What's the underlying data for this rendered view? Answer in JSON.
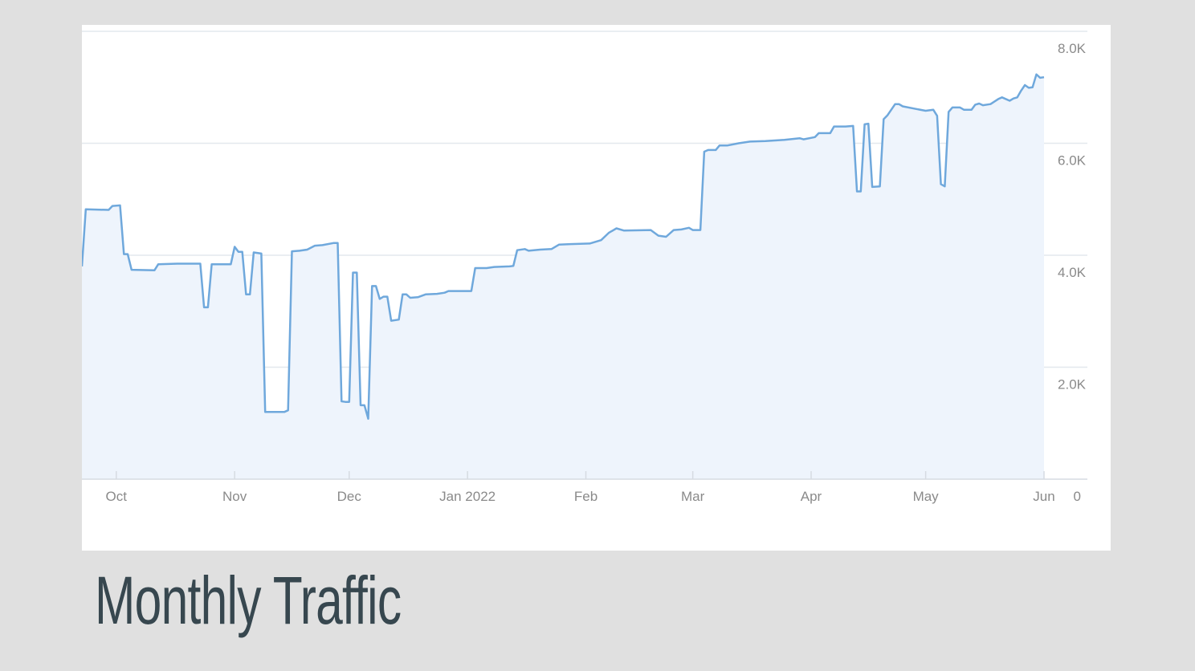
{
  "title": "Monthly Traffic",
  "colors": {
    "background": "#e0e0e0",
    "card": "#ffffff",
    "line": "#6fa8dc",
    "area": "#eef4fc",
    "grid": "#e3e8ee",
    "axis": "#d6dbe2",
    "tick_text": "#8a8a8a",
    "title": "#37474f"
  },
  "chart_data": {
    "type": "area",
    "title": "",
    "xlabel": "",
    "ylabel": "",
    "x_range": [
      "2021-09-22",
      "2022-06-01"
    ],
    "ylim": [
      0,
      8000
    ],
    "y_axis_position": "right",
    "grid": true,
    "legend": "none",
    "y_ticks": [
      {
        "value": 0,
        "label": "0"
      },
      {
        "value": 2000,
        "label": "2.0K"
      },
      {
        "value": 4000,
        "label": "4.0K"
      },
      {
        "value": 6000,
        "label": "6.0K"
      },
      {
        "value": 8000,
        "label": "8.0K"
      }
    ],
    "x_ticks": [
      {
        "date": "2021-10-01",
        "label": "Oct"
      },
      {
        "date": "2021-11-01",
        "label": "Nov"
      },
      {
        "date": "2021-12-01",
        "label": "Dec"
      },
      {
        "date": "2022-01-01",
        "label": "Jan 2022"
      },
      {
        "date": "2022-02-01",
        "label": "Feb"
      },
      {
        "date": "2022-03-01",
        "label": "Mar"
      },
      {
        "date": "2022-04-01",
        "label": "Apr"
      },
      {
        "date": "2022-05-01",
        "label": "May"
      },
      {
        "date": "2022-06-01",
        "label": "Jun"
      }
    ],
    "series": [
      {
        "points": [
          [
            "2021-09-22",
            3800
          ],
          [
            "2021-09-23",
            4820
          ],
          [
            "2021-09-29",
            4810
          ],
          [
            "2021-09-30",
            4880
          ],
          [
            "2021-10-02",
            4890
          ],
          [
            "2021-10-03",
            4020
          ],
          [
            "2021-10-04",
            4020
          ],
          [
            "2021-10-05",
            3740
          ],
          [
            "2021-10-11",
            3730
          ],
          [
            "2021-10-12",
            3840
          ],
          [
            "2021-10-17",
            3850
          ],
          [
            "2021-10-23",
            3850
          ],
          [
            "2021-10-24",
            3070
          ],
          [
            "2021-10-25",
            3070
          ],
          [
            "2021-10-26",
            3840
          ],
          [
            "2021-10-31",
            3840
          ],
          [
            "2021-11-01",
            4150
          ],
          [
            "2021-11-02",
            4060
          ],
          [
            "2021-11-03",
            4060
          ],
          [
            "2021-11-04",
            3300
          ],
          [
            "2021-11-05",
            3300
          ],
          [
            "2021-11-06",
            4050
          ],
          [
            "2021-11-08",
            4030
          ],
          [
            "2021-11-09",
            1200
          ],
          [
            "2021-11-14",
            1200
          ],
          [
            "2021-11-15",
            1230
          ],
          [
            "2021-11-16",
            4070
          ],
          [
            "2021-11-18",
            4080
          ],
          [
            "2021-11-20",
            4100
          ],
          [
            "2021-11-22",
            4170
          ],
          [
            "2021-11-24",
            4180
          ],
          [
            "2021-11-27",
            4220
          ],
          [
            "2021-11-28",
            4220
          ],
          [
            "2021-11-29",
            1390
          ],
          [
            "2021-11-30",
            1380
          ],
          [
            "2021-12-01",
            1380
          ],
          [
            "2021-12-02",
            3690
          ],
          [
            "2021-12-03",
            3690
          ],
          [
            "2021-12-04",
            1320
          ],
          [
            "2021-12-05",
            1320
          ],
          [
            "2021-12-06",
            1080
          ],
          [
            "2021-12-07",
            3450
          ],
          [
            "2021-12-08",
            3450
          ],
          [
            "2021-12-09",
            3220
          ],
          [
            "2021-12-10",
            3260
          ],
          [
            "2021-12-11",
            3260
          ],
          [
            "2021-12-12",
            2830
          ],
          [
            "2021-12-14",
            2850
          ],
          [
            "2021-12-15",
            3300
          ],
          [
            "2021-12-16",
            3300
          ],
          [
            "2021-12-17",
            3240
          ],
          [
            "2021-12-19",
            3250
          ],
          [
            "2021-12-21",
            3300
          ],
          [
            "2021-12-24",
            3310
          ],
          [
            "2021-12-26",
            3330
          ],
          [
            "2021-12-27",
            3360
          ],
          [
            "2022-01-02",
            3360
          ],
          [
            "2022-01-03",
            3770
          ],
          [
            "2022-01-06",
            3770
          ],
          [
            "2022-01-08",
            3790
          ],
          [
            "2022-01-12",
            3800
          ],
          [
            "2022-01-13",
            3810
          ],
          [
            "2022-01-14",
            4090
          ],
          [
            "2022-01-16",
            4110
          ],
          [
            "2022-01-17",
            4080
          ],
          [
            "2022-01-20",
            4100
          ],
          [
            "2022-01-23",
            4110
          ],
          [
            "2022-01-25",
            4190
          ],
          [
            "2022-01-28",
            4200
          ],
          [
            "2022-02-02",
            4210
          ],
          [
            "2022-02-05",
            4270
          ],
          [
            "2022-02-07",
            4400
          ],
          [
            "2022-02-09",
            4480
          ],
          [
            "2022-02-11",
            4440
          ],
          [
            "2022-02-18",
            4450
          ],
          [
            "2022-02-20",
            4350
          ],
          [
            "2022-02-22",
            4330
          ],
          [
            "2022-02-24",
            4450
          ],
          [
            "2022-02-26",
            4460
          ],
          [
            "2022-02-28",
            4490
          ],
          [
            "2022-03-01",
            4450
          ],
          [
            "2022-03-03",
            4450
          ],
          [
            "2022-03-04",
            5850
          ],
          [
            "2022-03-05",
            5880
          ],
          [
            "2022-03-07",
            5880
          ],
          [
            "2022-03-08",
            5960
          ],
          [
            "2022-03-10",
            5960
          ],
          [
            "2022-03-13",
            6000
          ],
          [
            "2022-03-16",
            6030
          ],
          [
            "2022-03-20",
            6040
          ],
          [
            "2022-03-25",
            6060
          ],
          [
            "2022-03-29",
            6090
          ],
          [
            "2022-03-30",
            6070
          ],
          [
            "2022-04-02",
            6110
          ],
          [
            "2022-04-03",
            6180
          ],
          [
            "2022-04-06",
            6180
          ],
          [
            "2022-04-07",
            6300
          ],
          [
            "2022-04-10",
            6300
          ],
          [
            "2022-04-12",
            6310
          ],
          [
            "2022-04-13",
            5140
          ],
          [
            "2022-04-14",
            5140
          ],
          [
            "2022-04-15",
            6340
          ],
          [
            "2022-04-16",
            6350
          ],
          [
            "2022-04-17",
            5220
          ],
          [
            "2022-04-19",
            5230
          ],
          [
            "2022-04-20",
            6430
          ],
          [
            "2022-04-21",
            6500
          ],
          [
            "2022-04-23",
            6700
          ],
          [
            "2022-04-24",
            6700
          ],
          [
            "2022-04-25",
            6660
          ],
          [
            "2022-04-28",
            6620
          ],
          [
            "2022-05-01",
            6580
          ],
          [
            "2022-05-03",
            6600
          ],
          [
            "2022-05-04",
            6490
          ],
          [
            "2022-05-05",
            5270
          ],
          [
            "2022-05-06",
            5230
          ],
          [
            "2022-05-07",
            6560
          ],
          [
            "2022-05-08",
            6640
          ],
          [
            "2022-05-10",
            6640
          ],
          [
            "2022-05-11",
            6600
          ],
          [
            "2022-05-13",
            6600
          ],
          [
            "2022-05-14",
            6690
          ],
          [
            "2022-05-15",
            6710
          ],
          [
            "2022-05-16",
            6680
          ],
          [
            "2022-05-18",
            6700
          ],
          [
            "2022-05-20",
            6790
          ],
          [
            "2022-05-21",
            6820
          ],
          [
            "2022-05-23",
            6760
          ],
          [
            "2022-05-24",
            6800
          ],
          [
            "2022-05-25",
            6820
          ],
          [
            "2022-05-26",
            6940
          ],
          [
            "2022-05-27",
            7040
          ],
          [
            "2022-05-28",
            6990
          ],
          [
            "2022-05-29",
            7000
          ],
          [
            "2022-05-30",
            7230
          ],
          [
            "2022-05-31",
            7170
          ],
          [
            "2022-06-01",
            7180
          ]
        ]
      }
    ]
  }
}
